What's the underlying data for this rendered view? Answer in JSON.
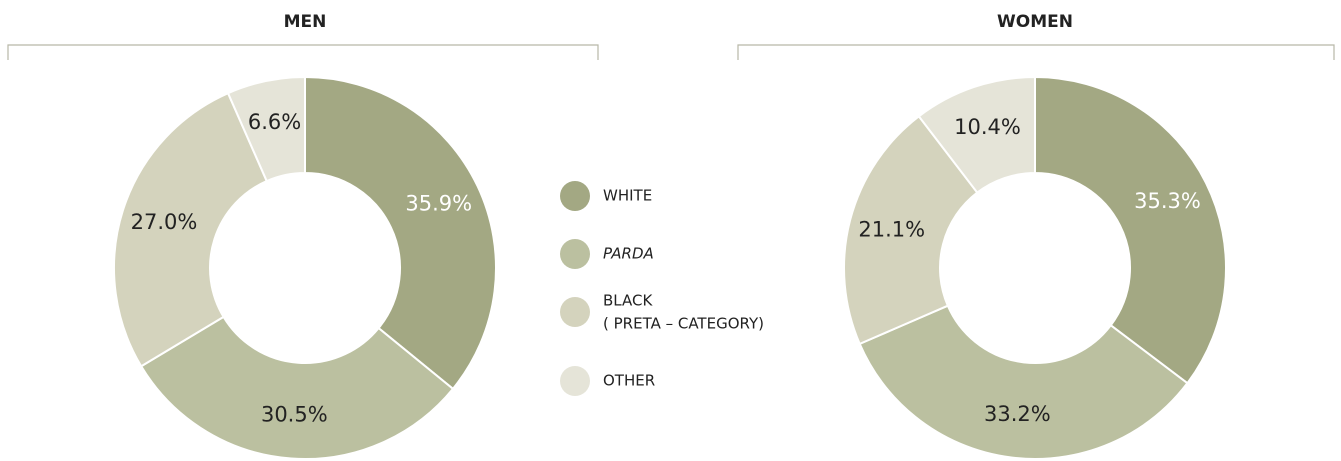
{
  "chart_data": [
    {
      "type": "donut",
      "title": "MEN",
      "values": [
        35.9,
        30.5,
        27.0,
        6.6
      ],
      "value_labels": [
        "35.9%",
        "30.5%",
        "27.0%",
        "6.6%"
      ]
    },
    {
      "type": "donut",
      "title": "WOMEN",
      "values": [
        35.3,
        33.2,
        21.1,
        10.4
      ],
      "value_labels": [
        "35.3%",
        "33.2%",
        "21.1%",
        "10.4%"
      ]
    }
  ],
  "legend": [
    {
      "label": "WHITE",
      "color": "#a3a883"
    },
    {
      "label": "PARDA",
      "color": "#bbc0a0",
      "italic": true
    },
    {
      "label": "BLACK",
      "note": "( PRETA – CATEGORY)",
      "color": "#d4d3bd"
    },
    {
      "label": "OTHER",
      "color": "#e5e4d8"
    }
  ]
}
